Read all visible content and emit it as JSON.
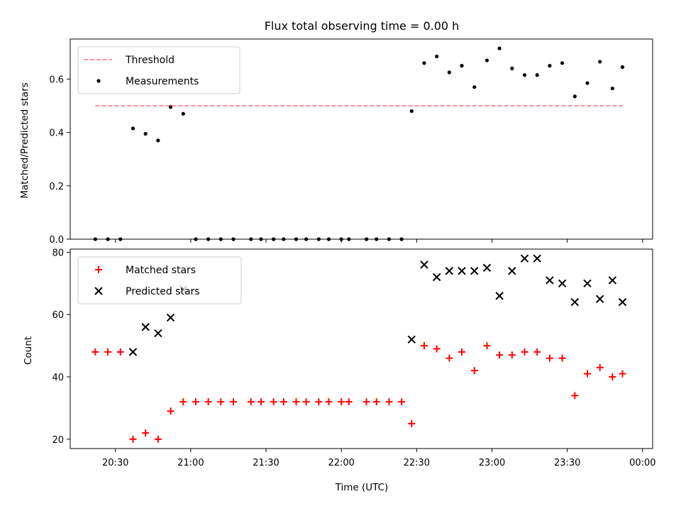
{
  "figure": {
    "title": "Flux total observing time = 0.00 h",
    "xlabel": "Time (UTC)"
  },
  "colors": {
    "threshold": "#ff7070",
    "measurements": "#000000",
    "matched": "#ff0000",
    "predicted": "#000000"
  },
  "chart_data": [
    {
      "type": "scatter",
      "ylabel": "Matched/Predicted stars",
      "ylim": [
        0,
        0.75
      ],
      "yticks": [
        0.0,
        0.2,
        0.4,
        0.6
      ],
      "ytick_labels": [
        "0.0",
        "0.2",
        "0.4",
        "0.6"
      ],
      "xlim": [
        "20:12",
        "00:04"
      ],
      "grid": false,
      "legend": {
        "placement": "upper left",
        "entries": [
          {
            "label": "Threshold",
            "marker": "dashed-line"
          },
          {
            "label": "Measurements",
            "marker": "dot"
          }
        ]
      },
      "threshold": {
        "value": 0.5,
        "x_start": "20:22",
        "x_end": "23:52"
      },
      "series": [
        {
          "name": "Measurements",
          "x": [
            "20:22",
            "20:27",
            "20:32",
            "20:37",
            "20:42",
            "20:47",
            "20:52",
            "20:57",
            "21:02",
            "21:07",
            "21:12",
            "21:17",
            "21:24",
            "21:28",
            "21:33",
            "21:37",
            "21:42",
            "21:46",
            "21:51",
            "21:55",
            "22:00",
            "22:03",
            "22:10",
            "22:14",
            "22:19",
            "22:24",
            "22:28",
            "22:33",
            "22:38",
            "22:43",
            "22:48",
            "22:53",
            "22:58",
            "23:03",
            "23:08",
            "23:13",
            "23:18",
            "23:23",
            "23:28",
            "23:33",
            "23:38",
            "23:43",
            "23:48",
            "23:52"
          ],
          "y": [
            0,
            0,
            0,
            0.415,
            0.395,
            0.37,
            0.495,
            0.47,
            0,
            0,
            0,
            0,
            0,
            0,
            0,
            0,
            0,
            0,
            0,
            0,
            0,
            0,
            0,
            0,
            0,
            0,
            0.48,
            0.66,
            0.685,
            0.625,
            0.65,
            0.57,
            0.67,
            0.715,
            0.64,
            0.615,
            0.615,
            0.65,
            0.66,
            0.535,
            0.585,
            0.665,
            0.565,
            0.645
          ]
        }
      ]
    },
    {
      "type": "scatter",
      "ylabel": "Count",
      "ylim": [
        17,
        81
      ],
      "yticks": [
        20,
        40,
        60,
        80
      ],
      "ytick_labels": [
        "20",
        "40",
        "60",
        "80"
      ],
      "xlim": [
        "20:12",
        "00:04"
      ],
      "xtick_values": [
        "20:30",
        "21:00",
        "21:30",
        "22:00",
        "22:30",
        "23:00",
        "23:30",
        "00:00"
      ],
      "xtick_labels": [
        "20:30",
        "21:00",
        "21:30",
        "22:00",
        "22:30",
        "23:00",
        "23:30",
        "00:00"
      ],
      "grid": false,
      "legend": {
        "placement": "upper left",
        "entries": [
          {
            "label": "Matched stars",
            "marker": "plus"
          },
          {
            "label": "Predicted stars",
            "marker": "x"
          }
        ]
      },
      "series": [
        {
          "name": "Matched stars",
          "x": [
            "20:22",
            "20:27",
            "20:32",
            "20:37",
            "20:42",
            "20:47",
            "20:52",
            "20:57",
            "21:02",
            "21:07",
            "21:12",
            "21:17",
            "21:24",
            "21:28",
            "21:33",
            "21:37",
            "21:42",
            "21:46",
            "21:51",
            "21:55",
            "22:00",
            "22:03",
            "22:10",
            "22:14",
            "22:19",
            "22:24",
            "22:28",
            "22:33",
            "22:38",
            "22:43",
            "22:48",
            "22:53",
            "22:58",
            "23:03",
            "23:08",
            "23:13",
            "23:18",
            "23:23",
            "23:28",
            "23:33",
            "23:38",
            "23:43",
            "23:48",
            "23:52"
          ],
          "y": [
            48,
            48,
            48,
            20,
            22,
            20,
            29,
            32,
            32,
            32,
            32,
            32,
            32,
            32,
            32,
            32,
            32,
            32,
            32,
            32,
            32,
            32,
            32,
            32,
            32,
            32,
            25,
            50,
            49,
            46,
            48,
            42,
            50,
            47,
            47,
            48,
            48,
            46,
            46,
            34,
            41,
            43,
            40,
            41
          ]
        },
        {
          "name": "Predicted stars",
          "x": [
            "20:37",
            "20:42",
            "20:47",
            "20:52",
            "20:57",
            "22:28",
            "22:33",
            "22:38",
            "22:43",
            "22:48",
            "22:53",
            "22:58",
            "23:03",
            "23:08",
            "23:13",
            "23:18",
            "23:23",
            "23:28",
            "23:33",
            "23:38",
            "23:43",
            "23:48",
            "23:52"
          ],
          "y": [
            48,
            56,
            54,
            59,
            68,
            52,
            76,
            72,
            74,
            74,
            74,
            75,
            66,
            74,
            78,
            78,
            71,
            70,
            64,
            70,
            65,
            71,
            64
          ]
        }
      ]
    }
  ]
}
